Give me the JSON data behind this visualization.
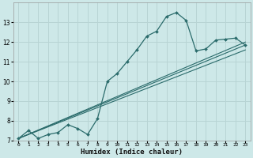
{
  "xlabel": "Humidex (Indice chaleur)",
  "ylabel": "",
  "bg_color": "#cde8e8",
  "grid_color": "#b8d4d4",
  "line_color": "#2a6b6b",
  "xlim": [
    -0.5,
    23.5
  ],
  "ylim": [
    7,
    14
  ],
  "xticks": [
    0,
    1,
    2,
    3,
    4,
    5,
    6,
    7,
    8,
    9,
    10,
    11,
    12,
    13,
    14,
    15,
    16,
    17,
    18,
    19,
    20,
    21,
    22,
    23
  ],
  "yticks": [
    7,
    8,
    9,
    10,
    11,
    12,
    13
  ],
  "main_x": [
    0,
    1,
    2,
    3,
    4,
    5,
    6,
    7,
    8,
    9,
    10,
    11,
    12,
    13,
    14,
    15,
    16,
    17,
    18,
    19,
    20,
    21,
    22,
    23
  ],
  "main_y": [
    7.1,
    7.5,
    7.1,
    7.3,
    7.4,
    7.8,
    7.6,
    7.3,
    8.1,
    10.0,
    10.4,
    11.0,
    11.6,
    12.3,
    12.55,
    13.3,
    13.5,
    13.1,
    11.55,
    11.65,
    12.1,
    12.15,
    12.2,
    11.85
  ],
  "line1_x": [
    0,
    23
  ],
  "line1_y": [
    7.1,
    12.0
  ],
  "line2_x": [
    0,
    23
  ],
  "line2_y": [
    7.1,
    11.6
  ],
  "line3_x": [
    0,
    23
  ],
  "line3_y": [
    7.1,
    11.85
  ]
}
